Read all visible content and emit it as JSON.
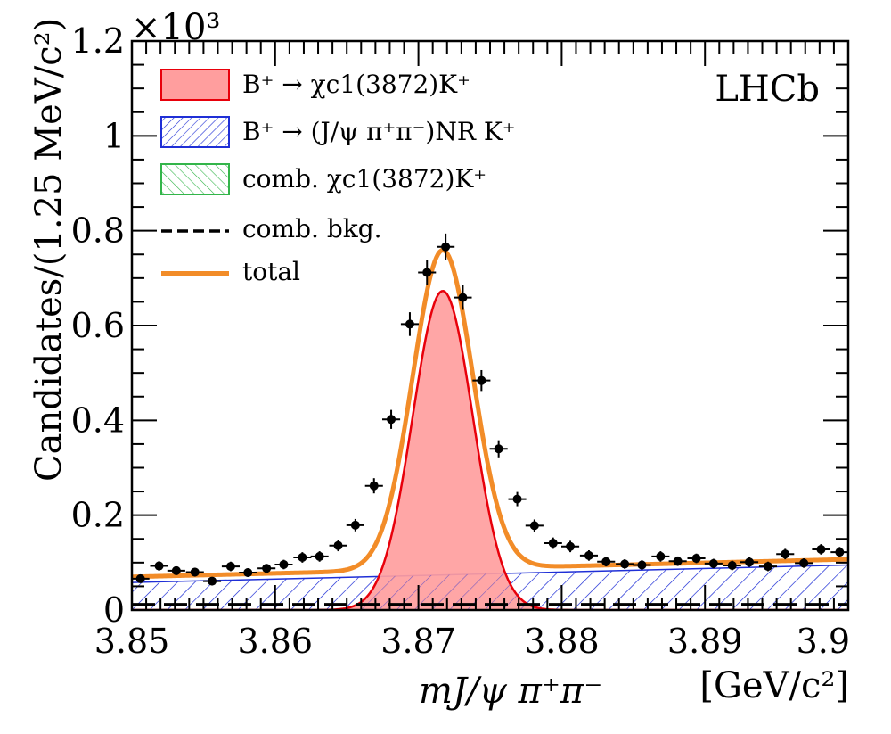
{
  "chart_data": {
    "type": "scatter",
    "title": "LHCb",
    "ylabel": "Candidates/(1.25 MeV/c²)",
    "y_exponent_label": "×10³",
    "xlabel": "mJ/ψ π⁺π⁻",
    "xunit": "[GeV/c²]",
    "xlim": [
      3.85,
      3.9
    ],
    "ylim": [
      0,
      1.2
    ],
    "x_ticks": [
      "3.85",
      "3.86",
      "3.87",
      "3.88",
      "3.89",
      "3.9"
    ],
    "y_ticks": [
      "0",
      "0.2",
      "0.4",
      "0.6",
      "0.8",
      "1",
      "1.2"
    ],
    "legend_position": "top-left",
    "legend": [
      {
        "label": "B⁺ → χc1(3872)K⁺",
        "style": "filled",
        "color": "#ff9e9e",
        "edge": "#e8000b"
      },
      {
        "label": "B⁺ → (J/ψ π⁺π⁻)NR K⁺",
        "style": "hatched",
        "color": "#1f2fd6"
      },
      {
        "label": "comb. χc1(3872)K⁺",
        "style": "hatched",
        "color": "#33b54a"
      },
      {
        "label": "comb. bkg.",
        "style": "dashed",
        "color": "#000000"
      },
      {
        "label": "total",
        "style": "line",
        "color": "#f28c28"
      }
    ],
    "signal": {
      "mean": 3.8717,
      "sigma": 0.0021,
      "peak": 0.673
    },
    "nonresonant": {
      "y_start": 0.058,
      "y_end": 0.095
    },
    "comb_bkg_level": 0.012,
    "data_points": {
      "x": [
        3.8506,
        3.8519,
        3.8531,
        3.8544,
        3.8556,
        3.8569,
        3.8581,
        3.8594,
        3.8606,
        3.8619,
        3.8631,
        3.8644,
        3.8656,
        3.8669,
        3.8681,
        3.8694,
        3.8706,
        3.8719,
        3.8731,
        3.8744,
        3.8756,
        3.8769,
        3.8781,
        3.8794,
        3.8806,
        3.8819,
        3.8831,
        3.8844,
        3.8856,
        3.8869,
        3.8881,
        3.8894,
        3.8906,
        3.8919,
        3.8931,
        3.8944,
        3.8956,
        3.8969,
        3.8981,
        3.8994
      ],
      "y": [
        0.066,
        0.093,
        0.083,
        0.08,
        0.061,
        0.092,
        0.079,
        0.088,
        0.096,
        0.111,
        0.113,
        0.136,
        0.179,
        0.262,
        0.402,
        0.603,
        0.712,
        0.766,
        0.659,
        0.484,
        0.34,
        0.234,
        0.178,
        0.141,
        0.134,
        0.115,
        0.102,
        0.097,
        0.095,
        0.113,
        0.103,
        0.109,
        0.098,
        0.094,
        0.101,
        0.092,
        0.118,
        0.099,
        0.128,
        0.122
      ],
      "yerr": [
        0.008,
        0.01,
        0.009,
        0.009,
        0.008,
        0.01,
        0.009,
        0.009,
        0.01,
        0.011,
        0.011,
        0.012,
        0.013,
        0.016,
        0.02,
        0.025,
        0.027,
        0.028,
        0.026,
        0.022,
        0.018,
        0.015,
        0.013,
        0.012,
        0.012,
        0.011,
        0.01,
        0.01,
        0.01,
        0.011,
        0.01,
        0.01,
        0.01,
        0.01,
        0.01,
        0.01,
        0.011,
        0.01,
        0.011,
        0.011
      ]
    }
  }
}
